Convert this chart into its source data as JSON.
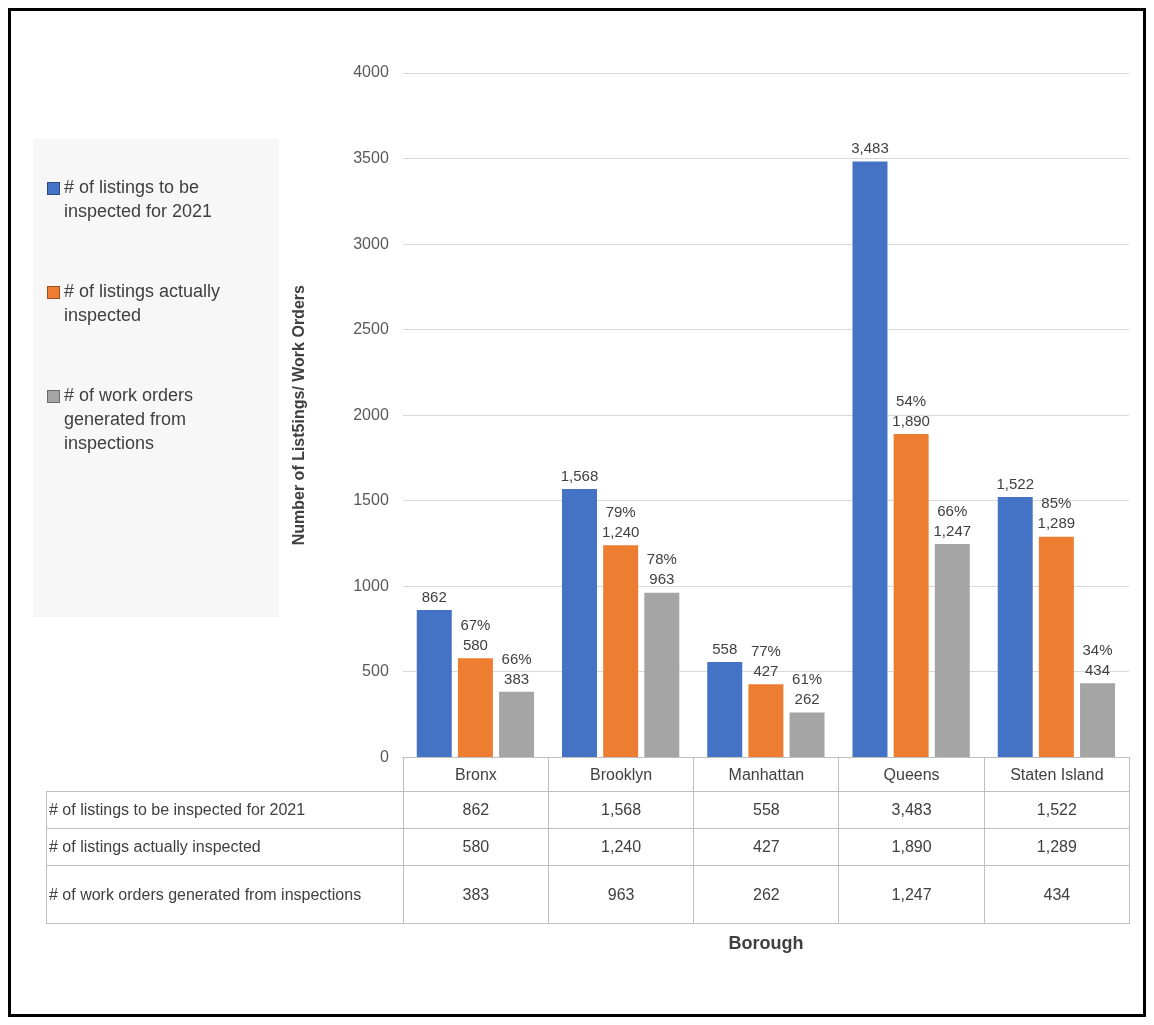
{
  "chart_data": {
    "type": "bar",
    "ylabel": "Number of List5ings/ Work Orders",
    "categories": [
      "Bronx",
      "Brooklyn",
      "Manhattan",
      "Queens",
      "Staten Island"
    ],
    "series": [
      {
        "name": "# of listings to be inspected for 2021",
        "color": "#4472c4",
        "values": [
          862,
          1568,
          558,
          3483,
          1522
        ],
        "value_labels": [
          "862",
          "1,568",
          "558",
          "3,483",
          "1,522"
        ]
      },
      {
        "name": "# of listings actually inspected",
        "color": "#ed7d31",
        "values": [
          580,
          1240,
          427,
          1890,
          1289
        ],
        "value_labels": [
          "580",
          "1,240",
          "427",
          "1,890",
          "1,289"
        ]
      },
      {
        "name": "# of work orders generated from inspections",
        "color": "#a5a5a5",
        "values": [
          383,
          963,
          262,
          1247,
          434
        ],
        "value_labels": [
          "383",
          "963",
          "262",
          "1,247",
          "434"
        ]
      }
    ],
    "annotations": [
      {
        "text": "67%",
        "x": "Bronx",
        "y": 580
      },
      {
        "text": "79%",
        "x": "Brooklyn",
        "y": 1240
      },
      {
        "text": "77%",
        "x": "Manhattan",
        "y": 427
      },
      {
        "text": "54%",
        "x": "Queens",
        "y": 1890
      },
      {
        "text": "85%",
        "x": "Staten Island",
        "y": 1289
      },
      "66%",
      "78%",
      "61%",
      "66%",
      "34%",
      "Borough"
    ],
    "ylim": [
      0,
      4000
    ],
    "yticks": [
      0,
      500,
      1000,
      1500,
      2000,
      2500,
      3000,
      3500,
      4000
    ],
    "grid": "y",
    "legend": "left"
  }
}
